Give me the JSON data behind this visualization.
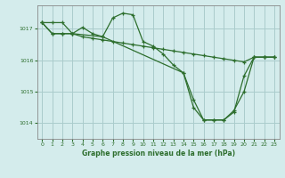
{
  "title": "Graphe pression niveau de la mer (hPa)",
  "bg_color": "#d4ecec",
  "grid_color": "#aacccc",
  "line_color": "#2d6e2d",
  "xlim": [
    -0.5,
    23.5
  ],
  "ylim": [
    1013.5,
    1017.75
  ],
  "yticks": [
    1014,
    1015,
    1016,
    1017
  ],
  "xticks": [
    0,
    1,
    2,
    3,
    4,
    5,
    6,
    7,
    8,
    9,
    10,
    11,
    12,
    13,
    14,
    15,
    16,
    17,
    18,
    19,
    20,
    21,
    22,
    23
  ],
  "series1": [
    [
      0,
      1017.2
    ],
    [
      1,
      1017.2
    ],
    [
      2,
      1017.2
    ],
    [
      3,
      1016.85
    ],
    [
      4,
      1016.75
    ],
    [
      5,
      1016.7
    ],
    [
      6,
      1016.65
    ],
    [
      7,
      1016.6
    ],
    [
      8,
      1016.55
    ],
    [
      9,
      1016.5
    ],
    [
      10,
      1016.45
    ],
    [
      11,
      1016.4
    ],
    [
      12,
      1016.35
    ],
    [
      13,
      1016.3
    ],
    [
      14,
      1016.25
    ],
    [
      15,
      1016.2
    ],
    [
      16,
      1016.15
    ],
    [
      17,
      1016.1
    ],
    [
      18,
      1016.05
    ],
    [
      19,
      1016.0
    ],
    [
      20,
      1015.95
    ],
    [
      21,
      1016.1
    ],
    [
      22,
      1016.1
    ],
    [
      23,
      1016.1
    ]
  ],
  "series2": [
    [
      0,
      1017.2
    ],
    [
      1,
      1016.85
    ],
    [
      2,
      1016.85
    ],
    [
      3,
      1016.85
    ],
    [
      4,
      1017.05
    ],
    [
      5,
      1016.85
    ],
    [
      6,
      1016.75
    ],
    [
      7,
      1017.35
    ],
    [
      8,
      1017.5
    ],
    [
      9,
      1017.45
    ],
    [
      10,
      1016.6
    ],
    [
      11,
      1016.45
    ],
    [
      12,
      1016.2
    ],
    [
      13,
      1015.85
    ],
    [
      14,
      1015.6
    ],
    [
      15,
      1014.75
    ],
    [
      16,
      1014.1
    ],
    [
      17,
      1014.1
    ],
    [
      18,
      1014.1
    ],
    [
      19,
      1014.4
    ],
    [
      20,
      1015.0
    ],
    [
      21,
      1016.1
    ],
    [
      22,
      1016.1
    ],
    [
      23,
      1016.1
    ]
  ],
  "series3": [
    [
      0,
      1017.2
    ],
    [
      1,
      1016.85
    ],
    [
      2,
      1016.85
    ],
    [
      3,
      1016.85
    ],
    [
      6,
      1016.75
    ],
    [
      14,
      1015.6
    ],
    [
      15,
      1014.5
    ],
    [
      16,
      1014.1
    ],
    [
      17,
      1014.1
    ],
    [
      18,
      1014.1
    ],
    [
      19,
      1014.35
    ],
    [
      20,
      1015.5
    ],
    [
      21,
      1016.1
    ],
    [
      22,
      1016.1
    ],
    [
      23,
      1016.1
    ]
  ]
}
